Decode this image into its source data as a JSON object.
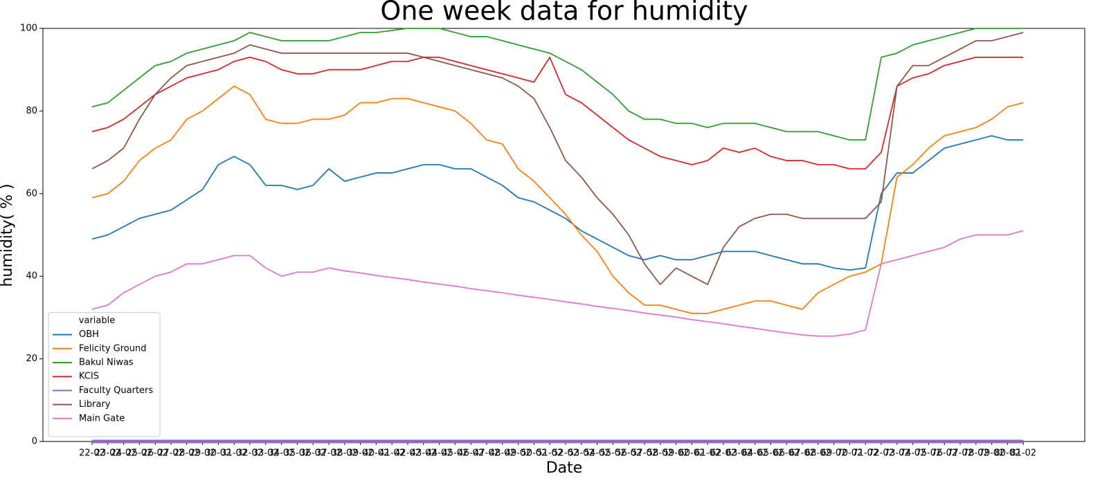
{
  "chart_data": {
    "type": "line",
    "title": "One week data for humidity",
    "x_label": "Date",
    "y_label": "humidity( % )",
    "legend_title": "variable",
    "legend": "lower left",
    "categories": [
      "22-02",
      "23-02",
      "24-02",
      "25-02",
      "26-02",
      "27-02",
      "28-02",
      "29-02",
      "30-02",
      "31-02",
      "32-02",
      "33-02",
      "34-02",
      "35-02",
      "36-02",
      "37-02",
      "38-02",
      "39-02",
      "40-02",
      "41-02",
      "42-02",
      "43-02",
      "44-02",
      "45-02",
      "46-02",
      "47-02",
      "48-02",
      "49-02",
      "50-02",
      "51-02",
      "52-02",
      "53-02",
      "54-02",
      "55-02",
      "56-02",
      "57-02",
      "58-02",
      "59-02",
      "60-02",
      "61-02",
      "62-02",
      "63-02",
      "64-02",
      "65-02",
      "66-02",
      "67-02",
      "68-02",
      "69-02",
      "70-02",
      "71-02",
      "72-02",
      "73-02",
      "74-02",
      "75-02",
      "76-02",
      "77-02",
      "78-02",
      "79-02",
      "80-02",
      "81-02"
    ],
    "ylim": [
      0,
      100
    ],
    "yticks": [
      0,
      20,
      40,
      60,
      80,
      100
    ],
    "series": [
      {
        "name": "OBH",
        "color": "#1f77b4",
        "values": [
          49,
          50,
          52,
          54,
          55,
          56,
          58.5,
          61,
          67,
          69,
          67,
          62,
          62,
          61,
          62,
          66,
          63,
          64,
          65,
          65,
          66,
          67,
          67,
          66,
          66,
          64,
          62,
          59,
          58,
          56,
          54,
          51,
          49,
          47,
          45,
          44,
          45,
          44,
          44,
          45,
          46,
          46,
          46,
          45,
          44,
          43,
          43,
          42,
          41.5,
          42,
          60,
          65,
          65,
          68,
          71,
          72,
          73,
          74,
          73,
          73
        ]
      },
      {
        "name": "Felicity Ground",
        "color": "#ff7f0e",
        "values": [
          59,
          60,
          63,
          68,
          71,
          73,
          78,
          80,
          83,
          86,
          84,
          78,
          77,
          77,
          78,
          78,
          79,
          82,
          82,
          83,
          83,
          82,
          81,
          80,
          77,
          73,
          72,
          66,
          63,
          59,
          55,
          50,
          46,
          40,
          36,
          33,
          33,
          32,
          31,
          31,
          32,
          33,
          34,
          34,
          33,
          32,
          36,
          38,
          40,
          41,
          43,
          64,
          67,
          71,
          74,
          75,
          76,
          78,
          81,
          82
        ]
      },
      {
        "name": "Bakul Niwas",
        "color": "#2ca02c",
        "values": [
          81,
          82,
          85,
          88,
          91,
          92,
          94,
          95,
          96,
          97,
          99,
          98,
          97,
          97,
          97,
          97,
          98,
          99,
          99,
          99.5,
          100,
          100,
          100,
          99,
          98,
          98,
          97,
          96,
          95,
          94,
          92,
          90,
          87,
          84,
          80,
          78,
          78,
          77,
          77,
          76,
          77,
          77,
          77,
          76,
          75,
          75,
          75,
          74,
          73,
          73,
          93,
          94,
          96,
          97,
          98,
          99,
          100,
          100,
          100,
          100
        ]
      },
      {
        "name": "KCIS",
        "color": "#d62728",
        "values": [
          75,
          76,
          78,
          81,
          84,
          86,
          88,
          89,
          90,
          92,
          93,
          92,
          90,
          89,
          89,
          90,
          90,
          90,
          91,
          92,
          92,
          93,
          93,
          92,
          91,
          90,
          89,
          88,
          87,
          93,
          84,
          82,
          79,
          76,
          73,
          71,
          69,
          68,
          67,
          68,
          71,
          70,
          71,
          69,
          68,
          68,
          67,
          67,
          66,
          66,
          70,
          86,
          88,
          89,
          91,
          92,
          93,
          93,
          93,
          93
        ]
      },
      {
        "name": "Faculty Quarters",
        "color": "#9467bd",
        "values": [
          0,
          0,
          0,
          0,
          0,
          0,
          0,
          0,
          0,
          0,
          0,
          0,
          0,
          0,
          0,
          0,
          0,
          0,
          0,
          0,
          0,
          0,
          0,
          0,
          0,
          0,
          0,
          0,
          0,
          0,
          0,
          0,
          0,
          0,
          0,
          0,
          0,
          0,
          0,
          0,
          0,
          0,
          0,
          0,
          0,
          0,
          0,
          0,
          0,
          0,
          0,
          0,
          0,
          0,
          0,
          0,
          0,
          0,
          0,
          0
        ]
      },
      {
        "name": "Library",
        "color": "#8c564b",
        "values": [
          66,
          68,
          71,
          78,
          84,
          88,
          91,
          92,
          93,
          94,
          96,
          95,
          94,
          94,
          94,
          94,
          94,
          94,
          94,
          94,
          94,
          93,
          92,
          91,
          90,
          89,
          88,
          86,
          83,
          76,
          68,
          64,
          59,
          55,
          50,
          43,
          38,
          42,
          40,
          38,
          47,
          52,
          54,
          55,
          55,
          54,
          54,
          54,
          54,
          54,
          58,
          86,
          91,
          91,
          93,
          95,
          97,
          97,
          98,
          99
        ]
      },
      {
        "name": "Main Gate",
        "color": "#e377c2",
        "values": [
          32,
          33,
          36,
          38,
          40,
          41,
          43,
          43,
          44,
          45,
          45,
          42,
          40,
          41,
          41,
          42,
          41.3,
          40.8,
          40.2,
          39.7,
          39.2,
          38.6,
          38.1,
          37.6,
          37,
          36.5,
          36,
          35.4,
          34.9,
          34.4,
          33.8,
          33.3,
          32.7,
          32.2,
          31.7,
          31.1,
          30.6,
          30.1,
          29.5,
          29,
          28.5,
          27.9,
          27.4,
          26.8,
          26.3,
          25.8,
          25.5,
          25.5,
          26,
          27,
          43,
          44,
          45,
          46,
          47,
          49,
          50,
          50,
          50,
          51
        ]
      }
    ]
  }
}
